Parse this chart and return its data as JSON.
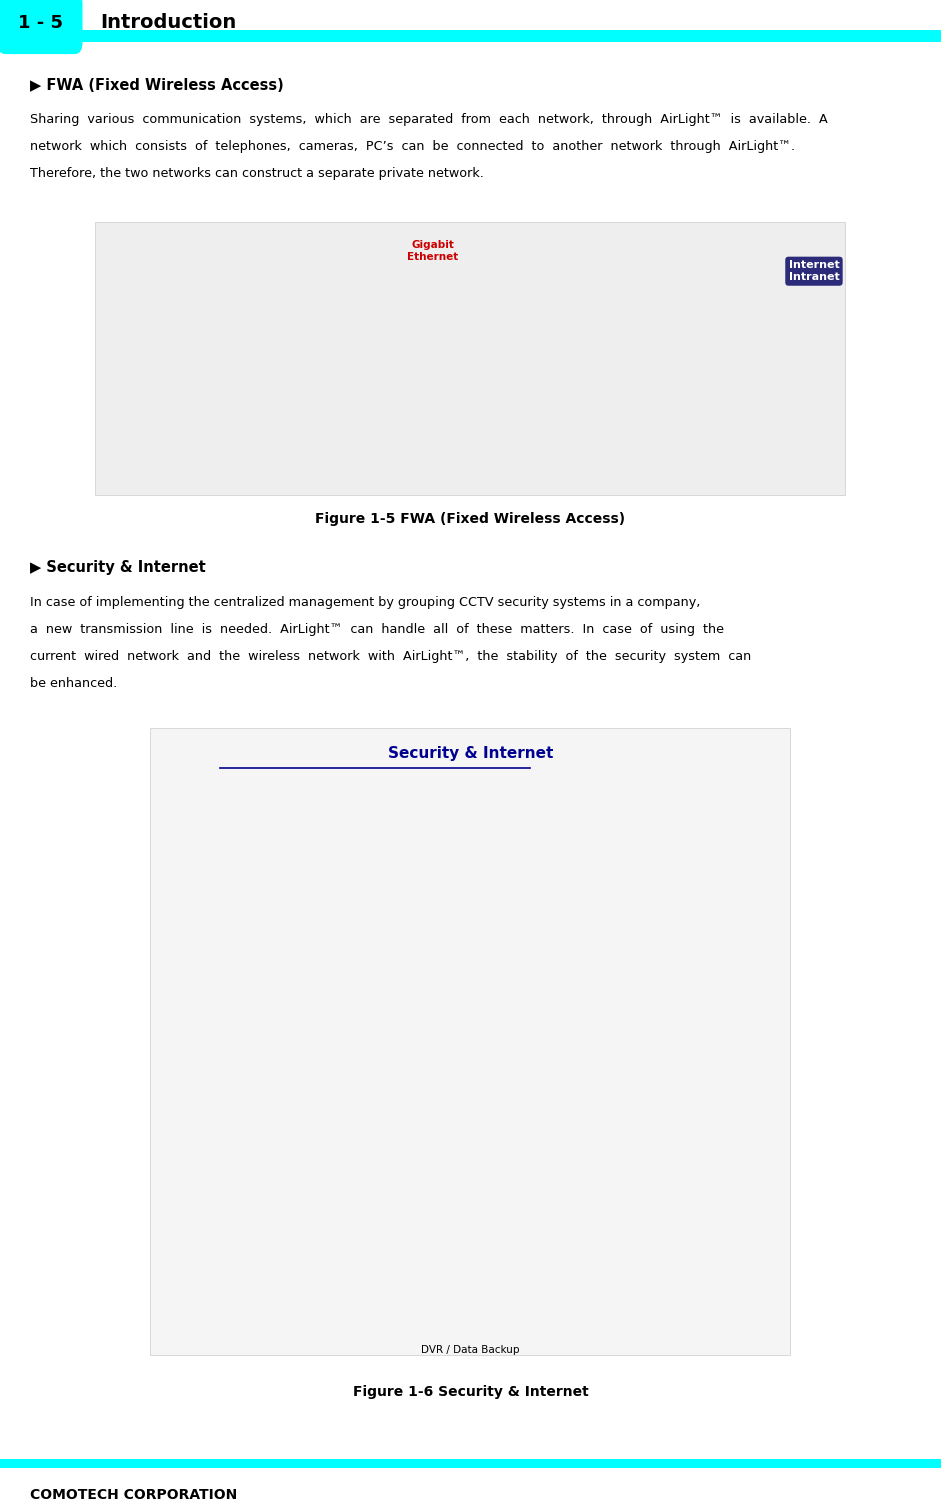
{
  "page_width": 9.41,
  "page_height": 15.09,
  "dpi": 100,
  "bg_color": "#ffffff",
  "cyan_color": "#00FFFF",
  "header_text": "1 - 5",
  "header_title": "Introduction",
  "section1_title": "▶ FWA (Fixed Wireless Access)",
  "section1_body_line1": "Sharing  various  communication  systems,  which  are  separated  from  each  network,  through  AirLight™  is  available.  A",
  "section1_body_line2": "network  which  consists  of  telephones,  cameras,  PC’s  can  be  connected  to  another  network  through  AirLight™.",
  "section1_body_line3": "Therefore, the two networks can construct a separate private network.",
  "fig1_caption": "Figure 1-5 FWA (Fixed Wireless Access)",
  "section2_title": "▶ Security & Internet",
  "section2_body_line1": "In case of implementing the centralized management by grouping CCTV security systems in a company,",
  "section2_body_line2": "a  new  transmission  line  is  needed.  AirLight™  can  handle  all  of  these  matters.  In  case  of  using  the",
  "section2_body_line3": "current  wired  network  and  the  wireless  network  with  AirLight™,  the  stability  of  the  security  system  can",
  "section2_body_line4": "be enhanced.",
  "fig2_caption": "Figure 1-6 Security & Internet",
  "footer_text": "COMOTECH CORPORATION",
  "footer_line_color": "#00FFFF",
  "text_color": "#000000"
}
